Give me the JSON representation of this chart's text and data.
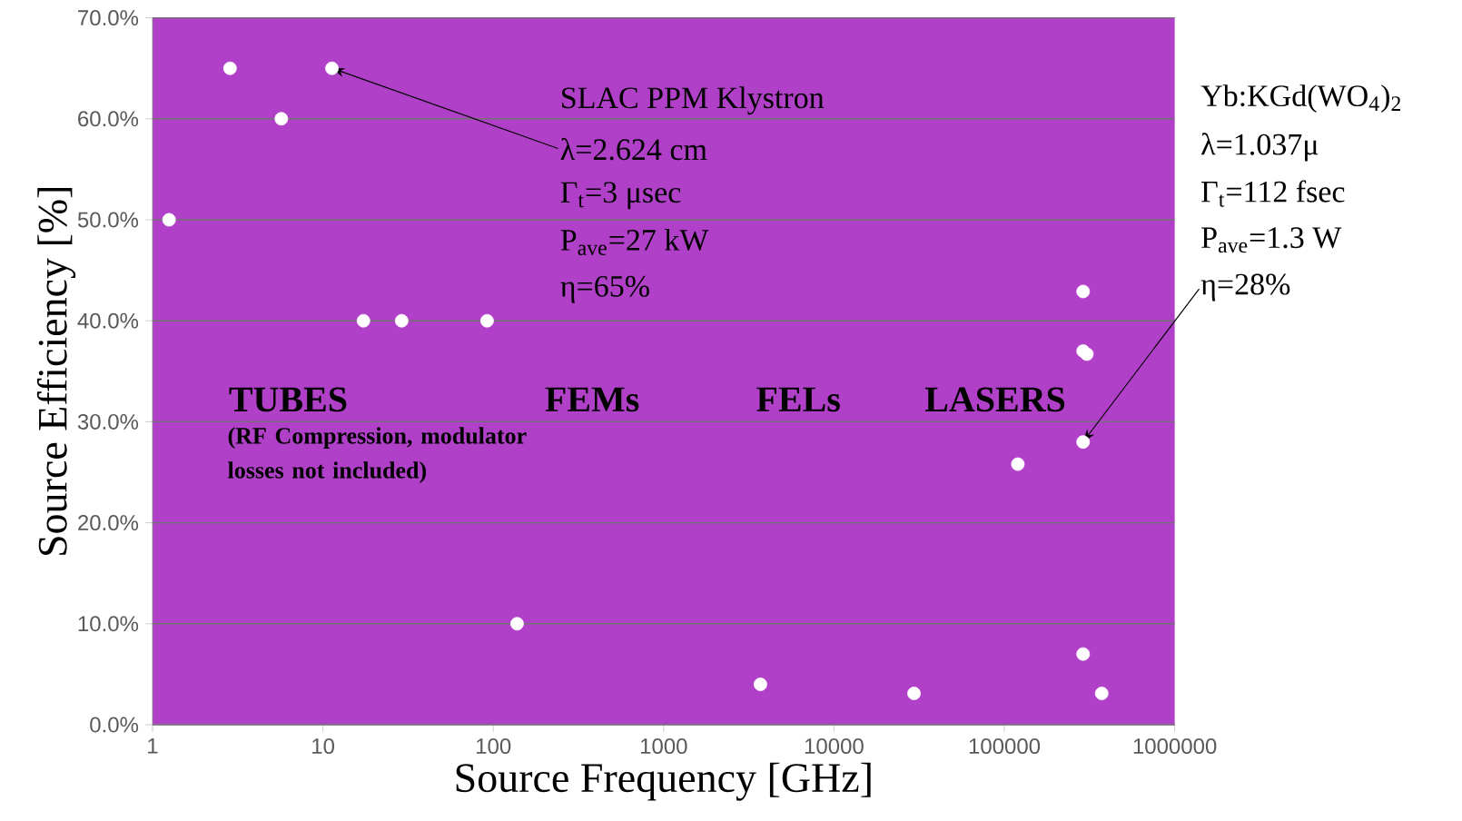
{
  "chart_data": {
    "type": "scatter",
    "xlabel": "Source Frequency [GHz]",
    "ylabel": "Source Efficiency [%]",
    "x": [
      1.25,
      2.85,
      5.7,
      11.3,
      17.3,
      29,
      92,
      138,
      3700,
      29500,
      120000,
      290000,
      290000,
      305000,
      290000,
      290000,
      373000
    ],
    "values": [
      50,
      65,
      60,
      65,
      40,
      40,
      40,
      10,
      4,
      3.1,
      25.8,
      42.9,
      37,
      36.7,
      28,
      7,
      3.1
    ],
    "color": "#ffffff",
    "marker": "circle",
    "log": "x",
    "grid": "y",
    "xlim": [
      1,
      1000000
    ],
    "ylim": [
      0,
      70
    ],
    "xticks": [
      1,
      10,
      100,
      1000,
      10000,
      100000,
      1000000
    ],
    "yticks": [
      {
        "value": 0,
        "label": "0.0%"
      },
      {
        "value": 10,
        "label": "10.0%"
      },
      {
        "value": 20,
        "label": "20.0%"
      },
      {
        "value": 30,
        "label": "30.0%"
      },
      {
        "value": 40,
        "label": "40.0%"
      },
      {
        "value": 50,
        "label": "50.0%"
      },
      {
        "value": 60,
        "label": "60.0%"
      },
      {
        "value": 70,
        "label": "70.0%"
      }
    ],
    "annotations": [
      "SLAC PPM Klystron",
      {
        "text": "λ=2.624 cm",
        "x": 11.3,
        "y": 65
      },
      "Γ$_{t}$=3 μsec",
      "P$_{ave}$=27 kW",
      "η=65%",
      "Yb:KGd(WO$_{4}$)$_{2}$",
      "λ=1.037μ",
      "Γ$_{t}$=112 fsec",
      "P$_{ave}$=1.3 W",
      {
        "text": "η=28%",
        "x": 290000,
        "y": 28
      },
      "TUBES",
      "FEMs",
      "FELs",
      "LASERS",
      "(RF Compression, modulator losses not included)"
    ]
  }
}
